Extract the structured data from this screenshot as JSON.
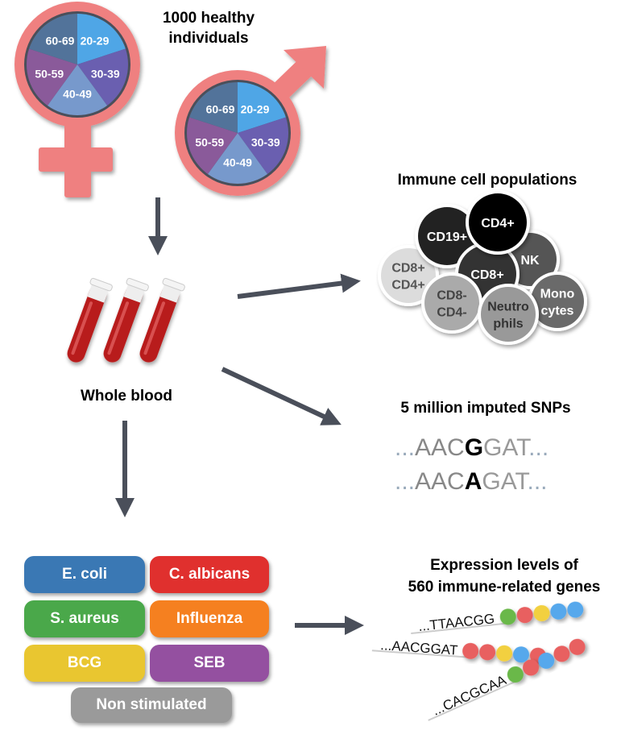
{
  "title_cohort": [
    "1000 healthy",
    "individuals"
  ],
  "age_groups": [
    "20-29",
    "30-39",
    "40-49",
    "50-59",
    "60-69"
  ],
  "age_colors": [
    "#4fa6e6",
    "#6a5fb0",
    "#7799cc",
    "#8a5a9a",
    "#52739a"
  ],
  "sex_symbol_color": "#ef8080",
  "sample_label": "Whole blood",
  "immune": {
    "title": "Immune cell populations",
    "cells": [
      {
        "label": [
          "CD8+",
          "CD4+"
        ],
        "color": "#dcdcdc",
        "text": "#555"
      },
      {
        "label": [
          "CD19+"
        ],
        "color": "#222222",
        "text": "#fff"
      },
      {
        "label": [
          "NK"
        ],
        "color": "#555555",
        "text": "#fff"
      },
      {
        "label": [
          "CD8+"
        ],
        "color": "#333333",
        "text": "#fff"
      },
      {
        "label": [
          "CD4+"
        ],
        "color": "#000000",
        "text": "#fff"
      },
      {
        "label": [
          "CD8-",
          "CD4-"
        ],
        "color": "#aaaaaa",
        "text": "#444"
      },
      {
        "label": [
          "Mono",
          "cytes"
        ],
        "color": "#6a6a6a",
        "text": "#fff"
      },
      {
        "label": [
          "Neutro",
          "phils"
        ],
        "color": "#999999",
        "text": "#333"
      }
    ]
  },
  "snps": {
    "title": "5 million imputed SNPs",
    "seq1": {
      "pre": "...",
      "left": "AAC",
      "allele": "G",
      "right": "GAT",
      "post": "..."
    },
    "seq2": {
      "pre": "...",
      "left": "AAC",
      "allele": "A",
      "right": "GAT",
      "post": "..."
    }
  },
  "stimuli": [
    {
      "label": "E. coli",
      "color": "#3a78b4"
    },
    {
      "label": "C. albicans",
      "color": "#e0302e"
    },
    {
      "label": "S. aureus",
      "color": "#4aa84a"
    },
    {
      "label": "Influenza",
      "color": "#f58020"
    },
    {
      "label": "BCG",
      "color": "#e9c630"
    },
    {
      "label": "SEB",
      "color": "#9450a0"
    },
    {
      "label": "Non stimulated",
      "color": "#9a9a9a"
    }
  ],
  "expression": {
    "title": [
      "Expression levels of",
      "560 immune-related genes"
    ],
    "sequences": [
      "...TTAACGG",
      "...AACGGAT",
      "...CACGCAA"
    ],
    "bead_colors": {
      "green": "#6ab84a",
      "red": "#e86060",
      "yellow": "#f2d040",
      "blue": "#56a8ec"
    }
  }
}
